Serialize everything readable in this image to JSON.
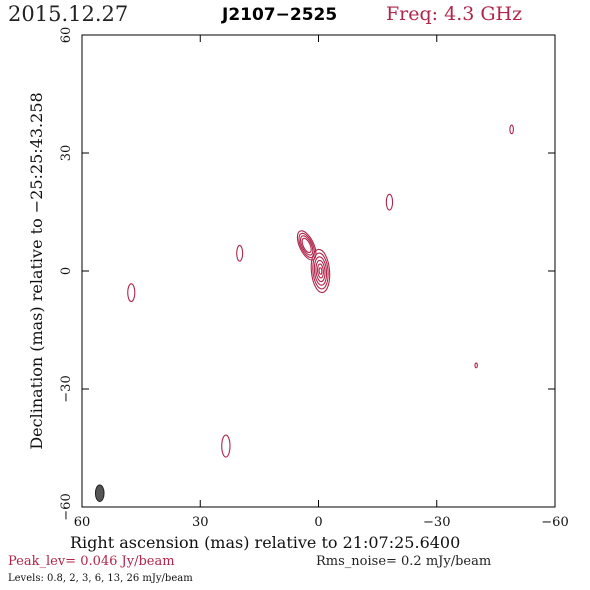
{
  "header": {
    "date": "2015.12.27",
    "source": "J2107−2525",
    "freq": "Freq: 4.3 GHz"
  },
  "footer": {
    "peak": "Peak_lev=  0.046 Jy/beam",
    "rms": "Rms_noise=   0.2 mJy/beam",
    "levels": "Levels: 0.8,    2,    3,    6,   13,   26 mJy/beam"
  },
  "colors": {
    "contour": "#b0254a",
    "beam": "#555555",
    "axis": "#000000"
  },
  "chart_data": {
    "type": "contour",
    "xlabel": "Right ascension (mas) relative to 21:07:25.6400",
    "ylabel": "Declination (mas) relative to −25:25:43.258",
    "xlim": [
      60,
      -60
    ],
    "ylim": [
      -60,
      60
    ],
    "x_ticks": [
      60,
      30,
      0,
      -30,
      -60
    ],
    "y_ticks": [
      -60,
      -30,
      0,
      30,
      60
    ],
    "x_tick_labels": [
      "60",
      "30",
      "0",
      "−30",
      "−60"
    ],
    "y_tick_labels": [
      "−60",
      "−30",
      "0",
      "30",
      "60"
    ],
    "contour_levels_mJy": [
      0.8,
      2,
      3,
      6,
      13,
      26
    ],
    "components": [
      {
        "x": -0.5,
        "y": 0.0,
        "w": 4.6,
        "h": 11.0,
        "angle": -5,
        "levels": 6
      },
      {
        "x": 3.0,
        "y": 6.5,
        "w": 3.6,
        "h": 8.0,
        "angle": -25,
        "levels": 4
      },
      {
        "x": 47.5,
        "y": -5.5,
        "w": 1.8,
        "h": 4.5,
        "angle": 0,
        "levels": 1
      },
      {
        "x": 20.0,
        "y": 4.5,
        "w": 1.5,
        "h": 4.0,
        "angle": 0,
        "levels": 1
      },
      {
        "x": -18.0,
        "y": 17.5,
        "w": 1.6,
        "h": 4.0,
        "angle": 0,
        "levels": 1
      },
      {
        "x": -49.0,
        "y": 36.0,
        "w": 0.9,
        "h": 2.2,
        "angle": 0,
        "levels": 1
      },
      {
        "x": -40.0,
        "y": -24.0,
        "w": 0.6,
        "h": 1.2,
        "angle": 0,
        "levels": 1
      },
      {
        "x": 23.5,
        "y": -44.5,
        "w": 2.1,
        "h": 5.6,
        "angle": 0,
        "levels": 1
      }
    ],
    "beam": {
      "x": 55.5,
      "y": -56.5,
      "w": 2.2,
      "h": 4.2,
      "angle": 0
    }
  }
}
